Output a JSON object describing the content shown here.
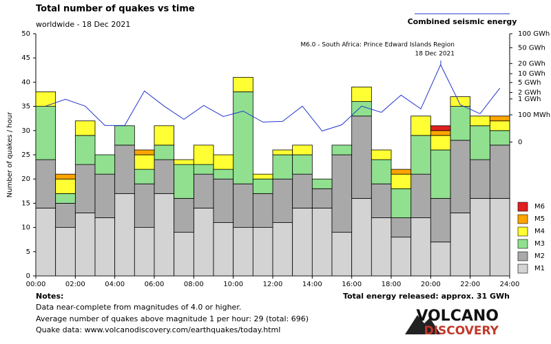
{
  "chart_data": {
    "type": "bar",
    "stacked": true,
    "title": "Total number of quakes vs time",
    "subtitle": "worldwide - 18 Dec 2021",
    "y_label": "Number of quakes / hour",
    "x": [
      0.5,
      1.5,
      2.5,
      3.5,
      4.5,
      5.5,
      6.5,
      7.5,
      8.5,
      9.5,
      10.5,
      11.5,
      12.5,
      13.5,
      14.5,
      15.5,
      16.5,
      17.5,
      18.5,
      19.5,
      20.5,
      21.5,
      22.5,
      23.5
    ],
    "xlim": [
      0,
      24
    ],
    "xticks": [
      {
        "value": 0,
        "label": "00:00"
      },
      {
        "value": 2,
        "label": "02:00"
      },
      {
        "value": 4,
        "label": "04:00"
      },
      {
        "value": 6,
        "label": "06:00"
      },
      {
        "value": 8,
        "label": "08:00"
      },
      {
        "value": 10,
        "label": "10:00"
      },
      {
        "value": 12,
        "label": "12:00"
      },
      {
        "value": 14,
        "label": "14:00"
      },
      {
        "value": 16,
        "label": "16:00"
      },
      {
        "value": 18,
        "label": "18:00"
      },
      {
        "value": 20,
        "label": "20:00"
      },
      {
        "value": 22,
        "label": "22:00"
      },
      {
        "value": 24,
        "label": "24:00"
      }
    ],
    "ylim": [
      0,
      50
    ],
    "yticks": [
      0,
      5,
      10,
      15,
      20,
      25,
      30,
      35,
      40,
      45,
      50
    ],
    "y2scale": "fifth-root",
    "y2lim": [
      -288,
      100
    ],
    "y2ticks": [
      {
        "value": 100,
        "label": "100 GWh"
      },
      {
        "value": 50,
        "label": "50 GWh"
      },
      {
        "value": 20,
        "label": "20 GWh"
      },
      {
        "value": 10,
        "label": "10 GWh"
      },
      {
        "value": 5,
        "label": "5 GWh"
      },
      {
        "value": 2,
        "label": "2 GWh"
      },
      {
        "value": 1,
        "label": "1 GWh"
      },
      {
        "value": 0.1,
        "label": "100 MWh"
      },
      0
    ],
    "grid": false,
    "series": [
      {
        "name": "M1",
        "color": "#d3d3d3",
        "values": [
          14,
          10,
          13,
          12,
          17,
          10,
          17,
          9,
          14,
          11,
          10,
          10,
          11,
          14,
          14,
          9,
          16,
          12,
          8,
          12,
          7,
          13,
          16,
          16
        ]
      },
      {
        "name": "M2",
        "color": "#a9a9a9",
        "values": [
          10,
          5,
          10,
          9,
          10,
          9,
          7,
          7,
          7,
          9,
          9,
          7,
          9,
          7,
          4,
          16,
          17,
          7,
          4,
          9,
          9,
          15,
          8,
          11
        ]
      },
      {
        "name": "M3",
        "color": "#90e090",
        "values": [
          11,
          2,
          6,
          4,
          4,
          3,
          3,
          7,
          2,
          2,
          19,
          3,
          5,
          4,
          2,
          2,
          3,
          5,
          6,
          8,
          10,
          7,
          7,
          3
        ]
      },
      {
        "name": "M4",
        "color": "#ffff33",
        "values": [
          3,
          3,
          3,
          0,
          0,
          3,
          4,
          1,
          4,
          3,
          3,
          1,
          1,
          2,
          0,
          0,
          3,
          2,
          3,
          4,
          3,
          2,
          2,
          2
        ]
      },
      {
        "name": "M5",
        "color": "#ffa500",
        "values": [
          0,
          1,
          0,
          0,
          0,
          1,
          0,
          0,
          0,
          0,
          0,
          0,
          0,
          0,
          0,
          0,
          0,
          0,
          1,
          0,
          1,
          0,
          0,
          1
        ]
      },
      {
        "name": "M6",
        "color": "#e02020",
        "values": [
          0,
          0,
          0,
          0,
          0,
          0,
          0,
          0,
          0,
          0,
          0,
          0,
          0,
          0,
          0,
          0,
          0,
          0,
          0,
          0,
          1,
          0,
          0,
          0
        ]
      },
      {
        "name": "Combined seismic energy",
        "type": "line",
        "axis": "y2",
        "color": "#2233cc",
        "values": [
          0.4,
          0.96,
          0.4,
          0.0084,
          0.0084,
          2.33,
          0.4,
          0.041,
          0.44,
          0.073,
          0.19,
          0.0215,
          0.0255,
          0.4,
          0.0011,
          0.0102,
          0.4,
          0.154,
          1.52,
          0.267,
          18.5,
          0.48,
          0.122,
          3.03
        ]
      }
    ],
    "annotation": [
      "M6.0 - South Africa: Prince Edward Islands Region",
      "18 Dec 2021"
    ]
  },
  "notes": {
    "title": "Notes:",
    "lines": [
      "Data near-complete from magnitudes of 4.0 or higher.",
      "Average number of quakes above magnitude 1 per hour: 29 (total: 696)",
      "Quake data: www.volcanodiscovery.com/earthquakes/today.html"
    ]
  },
  "total_energy": "Total energy released: approx. 31 GWh",
  "logo": [
    "VOLCANO",
    "DISCOVERY"
  ]
}
